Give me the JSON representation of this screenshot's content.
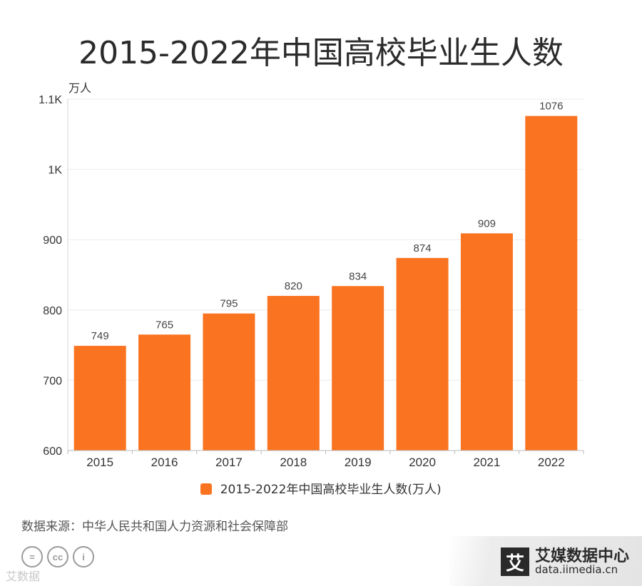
{
  "page": {
    "title": "2015-2022年中国高校毕业生人数",
    "source": "数据来源：中华人民共和国人力资源和社会保障部",
    "watermark_left": "艾数据",
    "license_icons": [
      "=",
      "cc",
      "i"
    ],
    "brand": {
      "logo_char": "艾",
      "name": "艾媒数据中心",
      "url": "data.iimedia.cn"
    }
  },
  "chart_data": {
    "type": "bar",
    "title": "2015-2022年中国高校毕业生人数",
    "ylabel": "万人",
    "xlabel": "",
    "categories": [
      "2015",
      "2016",
      "2017",
      "2018",
      "2019",
      "2020",
      "2021",
      "2022"
    ],
    "series": [
      {
        "name": "2015-2022年中国高校毕业生人数(万人)",
        "values": [
          749,
          765,
          795,
          820,
          834,
          874,
          909,
          1076
        ],
        "color": "#fa7320"
      }
    ],
    "ylim": [
      600,
      1100
    ],
    "yticks": [
      600,
      700,
      800,
      900,
      1000,
      1100
    ],
    "ytick_labels": [
      "600",
      "700",
      "800",
      "900",
      "1K",
      "1.1K"
    ],
    "data_labels": true,
    "grid": true,
    "legend_position": "bottom"
  }
}
